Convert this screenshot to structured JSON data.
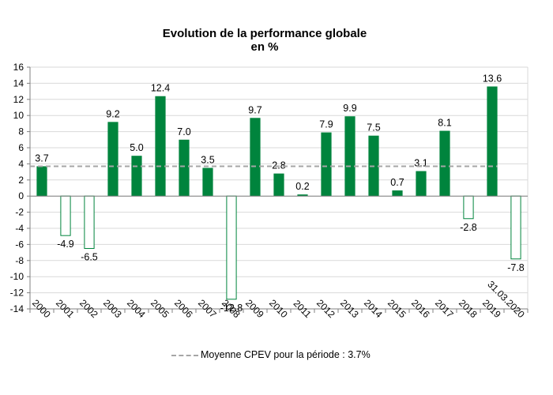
{
  "chart_data": {
    "type": "bar",
    "title": "Evolution de la performance globale",
    "subtitle": "en %",
    "categories": [
      "2000",
      "2001",
      "2002",
      "2003",
      "2004",
      "2005",
      "2006",
      "2007",
      "2008",
      "2009",
      "2010",
      "2011",
      "2012",
      "2013",
      "2014",
      "2015",
      "2016",
      "2017",
      "2018",
      "2019",
      "31.03.2020"
    ],
    "values": [
      3.7,
      -4.9,
      -6.5,
      9.2,
      5.0,
      12.4,
      7.0,
      3.5,
      -12.8,
      9.7,
      2.8,
      0.2,
      7.9,
      9.9,
      7.5,
      0.7,
      3.1,
      8.1,
      -2.8,
      13.6,
      -7.8
    ],
    "value_labels": [
      "3.7",
      "-4.9",
      "-6.5",
      "9.2",
      "5.0",
      "12.4",
      "7.0",
      "3.5",
      "-12.8",
      "9.7",
      "2.8",
      "0.2",
      "7.9",
      "9.9",
      "7.5",
      "0.7",
      "3.1",
      "8.1",
      "-2.8",
      "13.6",
      "-7.8"
    ],
    "ylim": [
      -14,
      16
    ],
    "yticks": [
      16,
      14,
      12,
      10,
      8,
      6,
      4,
      2,
      0,
      -2,
      -4,
      -6,
      -8,
      -10,
      -12,
      -14
    ],
    "grid": true,
    "average_line": {
      "value": 3.7,
      "label": "Moyenne CPEV pour la période : 3.7%"
    },
    "legend_position": "bottom",
    "colors": {
      "positive_fill": "#00843d",
      "negative_fill": "#ffffff",
      "negative_stroke": "#00843d",
      "average_line": "#a6a6a6",
      "grid": "#d9d9d9"
    }
  }
}
